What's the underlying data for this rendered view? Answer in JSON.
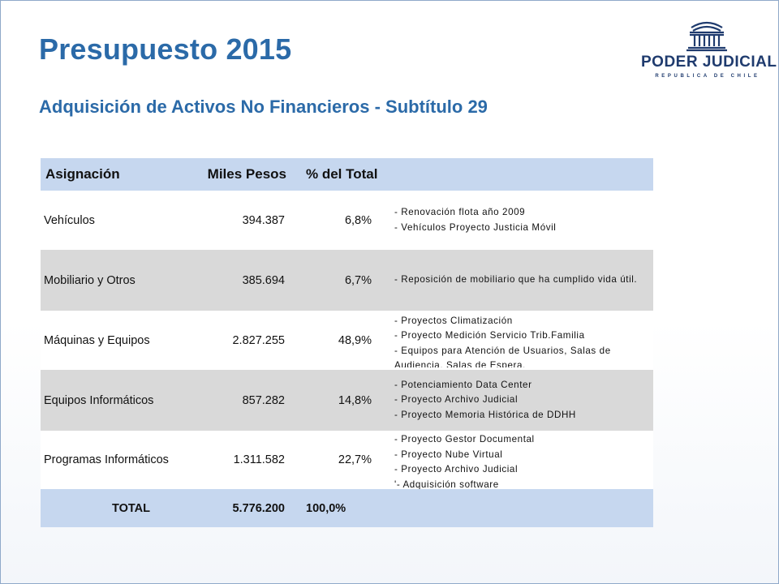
{
  "slide": {
    "title": "Presupuesto 2015",
    "subtitle": "Adquisición de Activos No Financieros - Subtítulo 29"
  },
  "logo": {
    "name": "PODER JUDICIAL",
    "sub": "REPUBLICA DE CHILE",
    "icon": "courthouse-icon",
    "color": "#1f3b6e"
  },
  "colors": {
    "title": "#2b6aa8",
    "header_bg": "#c6d7ef",
    "shaded_row_bg": "#d9d9d9"
  },
  "table": {
    "headers": [
      "Asignación",
      "Miles Pesos",
      "% del Total",
      ""
    ],
    "rows": [
      {
        "asignacion": "Vehículos",
        "miles_pesos": "394.387",
        "porcentaje": "6,8%",
        "notes": [
          "- Renovación flota año 2009",
          "- Vehículos Proyecto Justicia Móvil"
        ]
      },
      {
        "asignacion": "Mobiliario y Otros",
        "miles_pesos": "385.694",
        "porcentaje": "6,7%",
        "notes": [
          "- Reposición de mobiliario que ha cumplido vida útil."
        ]
      },
      {
        "asignacion": "Máquinas y Equipos",
        "miles_pesos": "2.827.255",
        "porcentaje": "48,9%",
        "notes": [
          "- Proyectos Climatización",
          "- Proyecto Medición Servicio Trib.Familia",
          "- Equipos para Atención de Usuarios, Salas de Audiencia, Salas de Espera."
        ]
      },
      {
        "asignacion": "Equipos Informáticos",
        "miles_pesos": "857.282",
        "porcentaje": "14,8%",
        "notes": [
          "- Potenciamiento Data Center",
          "- Proyecto Archivo Judicial",
          "- Proyecto Memoria Histórica de DDHH"
        ]
      },
      {
        "asignacion": "Programas Informáticos",
        "miles_pesos": "1.311.582",
        "porcentaje": "22,7%",
        "notes": [
          "- Proyecto Gestor Documental",
          "- Proyecto Nube Virtual",
          "- Proyecto Archivo Judicial",
          "'- Adquisición software"
        ]
      }
    ],
    "total": {
      "label": "TOTAL",
      "miles_pesos": "5.776.200",
      "porcentaje": "100,0%"
    }
  }
}
